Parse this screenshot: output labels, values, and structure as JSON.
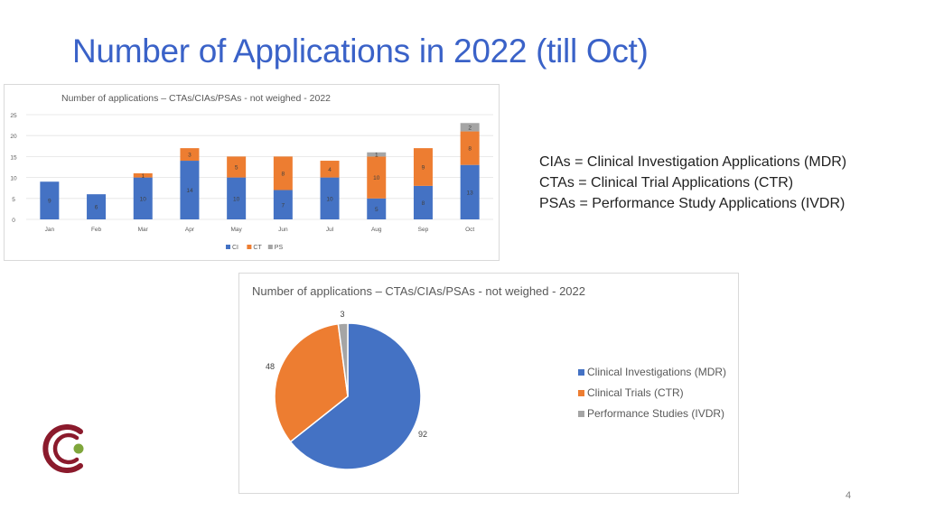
{
  "slide": {
    "title": "Number of Applications in 2022 (till Oct)",
    "page_number": "4",
    "definitions": [
      "CIAs = Clinical Investigation Applications (MDR)",
      "CTAs = Clinical Trial Applications (CTR)",
      "PSAs = Performance Study Applications (IVDR)"
    ]
  },
  "chart_data": [
    {
      "type": "bar",
      "stacked": true,
      "title": "Number of applications – CTAs/CIAs/PSAs  - not weighed - 2022",
      "categories": [
        "Jan",
        "Feb",
        "Mar",
        "Apr",
        "May",
        "Jun",
        "Jul",
        "Aug",
        "Sep",
        "Oct"
      ],
      "series": [
        {
          "name": "CI",
          "color": "#4472c4",
          "values": [
            9,
            6,
            10,
            14,
            10,
            7,
            10,
            5,
            8,
            13
          ]
        },
        {
          "name": "CT",
          "color": "#ed7d31",
          "values": [
            null,
            null,
            1,
            3,
            5,
            8,
            4,
            10,
            9,
            8
          ]
        },
        {
          "name": "PS",
          "color": "#a5a5a5",
          "values": [
            null,
            null,
            null,
            null,
            null,
            null,
            null,
            1,
            null,
            2
          ]
        }
      ],
      "yticks": [
        0,
        5,
        10,
        15,
        20,
        25
      ],
      "ylim": [
        0,
        25
      ],
      "grid": true,
      "legend": "bottom"
    },
    {
      "type": "pie",
      "title": "Number of applications – CTAs/CIAs/PSAs  - not weighed - 2022",
      "labels": [
        "Clinical Investigations (MDR)",
        "Clinical Trials (CTR)",
        "Performance Studies (IVDR)"
      ],
      "values": [
        92,
        48,
        3
      ],
      "colors": [
        "#4472c4",
        "#ed7d31",
        "#a5a5a5"
      ],
      "legend": "right"
    }
  ]
}
